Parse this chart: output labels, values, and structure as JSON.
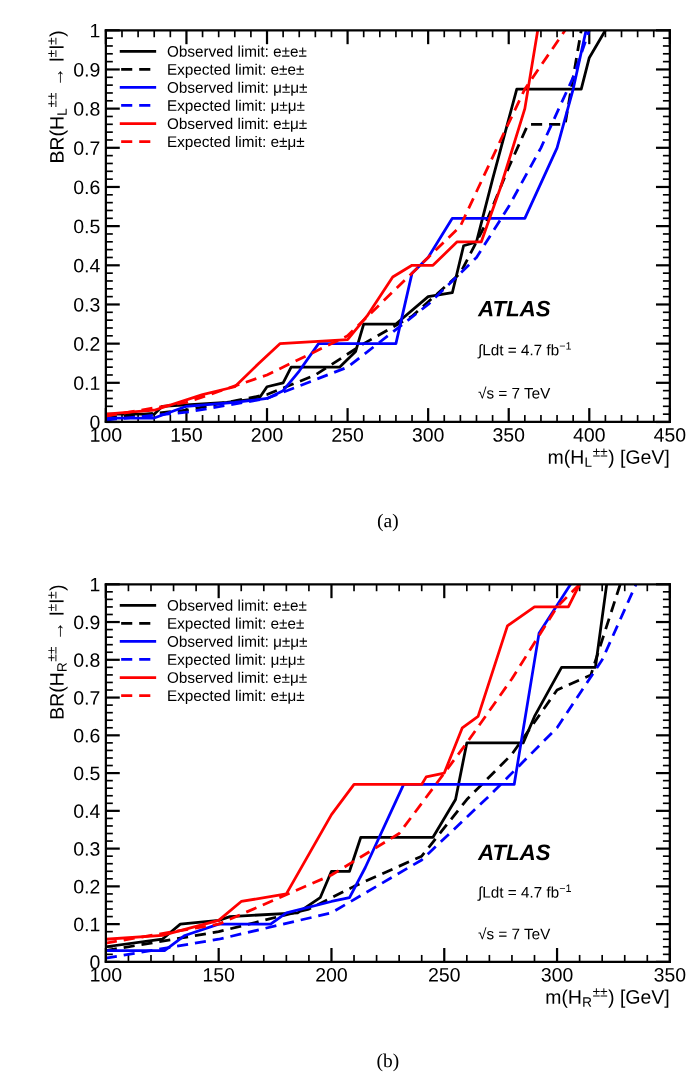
{
  "chart_data": [
    {
      "type": "line",
      "xlabel": "m(H$_{L}$$^{±±}$) [GeV]",
      "ylabel": "BR(H$_{L}$$^{±±}$ → l$^{±}$l$^{±}$)",
      "xlim": [
        100,
        450
      ],
      "ylim": [
        0,
        1
      ],
      "xticks": [
        100,
        150,
        200,
        250,
        300,
        350,
        400,
        450
      ],
      "yticks": [
        0,
        0.1,
        0.2,
        0.3,
        0.4,
        0.5,
        0.6,
        0.7,
        0.8,
        0.9,
        1
      ],
      "legend": "top left",
      "grid": false,
      "annotations": [
        "ATLAS",
        "∫Ldt = 4.7 fb$^{−1}$",
        "√s = 7 TeV",
        "(a)"
      ],
      "series": [
        {
          "name": "Observed limit: e±e±",
          "color": "#000000",
          "line_style": "solid",
          "x": [
            100,
            130,
            135,
            175,
            195,
            200,
            210,
            215,
            245,
            255,
            260,
            280,
            300,
            315,
            322,
            330,
            340,
            355,
            395,
            400,
            410
          ],
          "values": [
            0.02,
            0.02,
            0.04,
            0.05,
            0.06,
            0.09,
            0.1,
            0.14,
            0.14,
            0.18,
            0.25,
            0.25,
            0.32,
            0.33,
            0.45,
            0.46,
            0.62,
            0.85,
            0.85,
            0.93,
            1.0
          ]
        },
        {
          "name": "Expected limit: e±e±",
          "color": "#000000",
          "line_style": "dashed",
          "x": [
            100,
            150,
            200,
            230,
            260,
            290,
            320,
            335,
            350,
            362,
            385,
            395
          ],
          "values": [
            0.01,
            0.03,
            0.07,
            0.12,
            0.2,
            0.27,
            0.38,
            0.5,
            0.65,
            0.76,
            0.76,
            1.0
          ]
        },
        {
          "name": "Observed limit: μ±μ±",
          "color": "#0000ff",
          "line_style": "solid",
          "x": [
            100,
            130,
            150,
            180,
            200,
            210,
            220,
            232,
            280,
            290,
            300,
            315,
            360,
            380,
            390,
            398
          ],
          "values": [
            0.01,
            0.01,
            0.04,
            0.05,
            0.06,
            0.08,
            0.13,
            0.2,
            0.2,
            0.38,
            0.42,
            0.52,
            0.52,
            0.7,
            0.85,
            1.0
          ]
        },
        {
          "name": "Expected limit: μ±μ±",
          "color": "#0000ff",
          "line_style": "dashed",
          "x": [
            100,
            150,
            200,
            250,
            300,
            330,
            350,
            370,
            390,
            400
          ],
          "values": [
            0.005,
            0.025,
            0.06,
            0.14,
            0.3,
            0.42,
            0.55,
            0.7,
            0.88,
            1.0
          ]
        },
        {
          "name": "Observed limit: e±μ±",
          "color": "#ff0000",
          "line_style": "solid",
          "x": [
            100,
            130,
            160,
            180,
            195,
            208,
            250,
            262,
            278,
            290,
            303,
            318,
            333,
            345,
            360,
            368
          ],
          "values": [
            0.02,
            0.03,
            0.07,
            0.09,
            0.15,
            0.2,
            0.21,
            0.27,
            0.37,
            0.4,
            0.4,
            0.46,
            0.46,
            0.6,
            0.8,
            1.0
          ]
        },
        {
          "name": "Expected limit: e±μ±",
          "color": "#ff0000",
          "line_style": "dashed",
          "x": [
            100,
            150,
            200,
            250,
            280,
            300,
            320,
            345,
            360,
            385
          ],
          "values": [
            0.015,
            0.05,
            0.12,
            0.22,
            0.34,
            0.42,
            0.5,
            0.72,
            0.85,
            1.0
          ]
        }
      ]
    },
    {
      "type": "line",
      "xlabel": "m(H$_{R}$$^{±±}$) [GeV]",
      "ylabel": "BR(H$_{R}$$^{±±}$ → l$^{±}$l$^{±}$)",
      "xlim": [
        100,
        350
      ],
      "ylim": [
        0,
        1
      ],
      "xticks": [
        100,
        150,
        200,
        250,
        300,
        350
      ],
      "yticks": [
        0,
        0.1,
        0.2,
        0.3,
        0.4,
        0.5,
        0.6,
        0.7,
        0.8,
        0.9,
        1
      ],
      "legend": "top left",
      "grid": false,
      "annotations": [
        "ATLAS",
        "∫Ldt = 4.7 fb$^{−1}$",
        "√s = 7 TeV",
        "(b)"
      ],
      "series": [
        {
          "name": "Observed limit: e±e±",
          "color": "#000000",
          "line_style": "solid",
          "x": [
            100,
            125,
            133,
            150,
            155,
            185,
            195,
            200,
            208,
            213,
            245,
            255,
            260,
            285,
            290,
            302,
            317,
            322
          ],
          "values": [
            0.04,
            0.06,
            0.1,
            0.11,
            0.12,
            0.13,
            0.17,
            0.24,
            0.24,
            0.33,
            0.33,
            0.43,
            0.58,
            0.58,
            0.65,
            0.78,
            0.78,
            1.0
          ]
        },
        {
          "name": "Expected limit: e±e±",
          "color": "#000000",
          "line_style": "dashed",
          "x": [
            100,
            150,
            190,
            210,
            240,
            260,
            280,
            300,
            315,
            328
          ],
          "values": [
            0.03,
            0.08,
            0.14,
            0.2,
            0.28,
            0.43,
            0.55,
            0.72,
            0.76,
            1.0
          ]
        },
        {
          "name": "Observed limit: μ±μ±",
          "color": "#0000ff",
          "line_style": "solid",
          "x": [
            100,
            126,
            135,
            150,
            173,
            180,
            200,
            208,
            215,
            232,
            281,
            292,
            306
          ],
          "values": [
            0.03,
            0.03,
            0.07,
            0.1,
            0.1,
            0.13,
            0.16,
            0.17,
            0.25,
            0.47,
            0.47,
            0.87,
            1.0
          ]
        },
        {
          "name": "Expected limit: μ±μ±",
          "color": "#0000ff",
          "line_style": "dashed",
          "x": [
            100,
            150,
            200,
            240,
            270,
            300,
            320,
            335
          ],
          "values": [
            0.01,
            0.06,
            0.13,
            0.27,
            0.44,
            0.62,
            0.8,
            1.0
          ]
        },
        {
          "name": "Observed limit: e±μ±",
          "color": "#ff0000",
          "line_style": "solid",
          "x": [
            100,
            125,
            150,
            160,
            180,
            200,
            210,
            240,
            242,
            250,
            258,
            265,
            278,
            290,
            305,
            310
          ],
          "values": [
            0.06,
            0.07,
            0.11,
            0.16,
            0.18,
            0.39,
            0.47,
            0.47,
            0.49,
            0.5,
            0.62,
            0.65,
            0.89,
            0.94,
            0.94,
            1.0
          ]
        },
        {
          "name": "Expected limit: e±μ±",
          "color": "#ff0000",
          "line_style": "dashed",
          "x": [
            100,
            150,
            200,
            230,
            260,
            280,
            300,
            310
          ],
          "values": [
            0.05,
            0.1,
            0.23,
            0.34,
            0.58,
            0.75,
            0.94,
            1.0
          ]
        }
      ]
    }
  ]
}
